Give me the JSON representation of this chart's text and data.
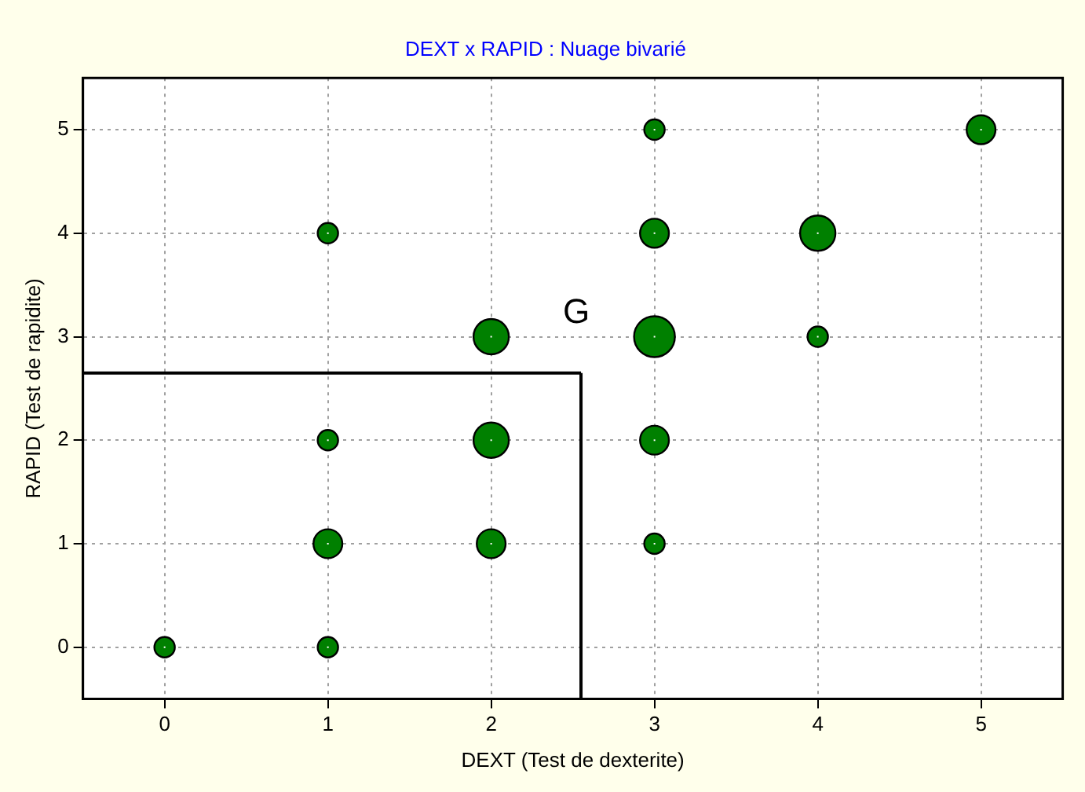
{
  "chart_data": {
    "type": "bubble",
    "title": "DEXT x RAPID : Nuage bivarié",
    "xlabel": "DEXT (Test de dexterite)",
    "ylabel": "RAPID (Test de rapidite)",
    "series": [
      {
        "color": "#008000",
        "x": [
          0,
          1,
          1,
          1,
          1,
          2,
          2,
          2,
          3,
          3,
          3,
          3,
          3,
          4,
          4,
          5
        ],
        "values": [
          0,
          0,
          1,
          2,
          4,
          1,
          2,
          3,
          1,
          2,
          3,
          4,
          5,
          3,
          4,
          5
        ],
        "sizes": [
          0.25,
          0.25,
          0.5,
          0.25,
          0.25,
          0.5,
          0.75,
          0.75,
          0.25,
          0.5,
          1,
          0.5,
          0.25,
          0.25,
          0.75,
          0.5
        ]
      }
    ],
    "xlim": [
      -0.5,
      5.5
    ],
    "xticks": [
      0,
      1,
      2,
      3,
      4,
      5
    ],
    "ylim": [
      -0.5,
      5.5
    ],
    "yticks": [
      0,
      1,
      2,
      3,
      4,
      5
    ],
    "grid": true,
    "legend": false,
    "marker": "circle",
    "ref_lines": [
      {
        "axis": "x",
        "value": 2.55,
        "color": "#000000"
      },
      {
        "axis": "y",
        "value": 2.65,
        "color": "#000000"
      }
    ],
    "annotations": [
      {
        "text": "G",
        "x": 2.55,
        "y": 2.65
      }
    ]
  }
}
